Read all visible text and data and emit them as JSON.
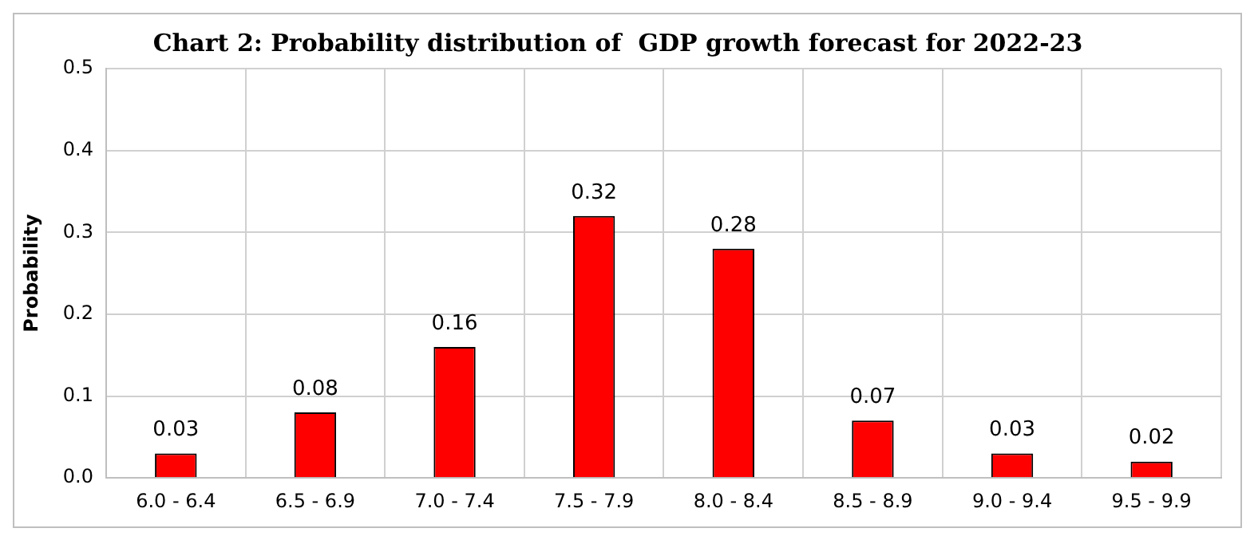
{
  "chart_data": {
    "type": "bar",
    "title": "Chart 2: Probability distribution of  GDP growth forecast for 2022-23",
    "ylabel": "Probability",
    "categories": [
      "6.0 - 6.4",
      "6.5 - 6.9",
      "7.0 - 7.4",
      "7.5 - 7.9",
      "8.0 - 8.4",
      "8.5 - 8.9",
      "9.0 - 9.4",
      "9.5 - 9.9"
    ],
    "values": [
      0.03,
      0.08,
      0.16,
      0.32,
      0.28,
      0.07,
      0.03,
      0.02
    ],
    "color": "#ff0000",
    "ylim": [
      0,
      0.5
    ],
    "yticks": [
      {
        "value": 0,
        "label": "0.0"
      },
      0.1,
      0.2,
      0.3,
      0.4,
      0.5
    ],
    "grid": true,
    "data_labels": true
  }
}
